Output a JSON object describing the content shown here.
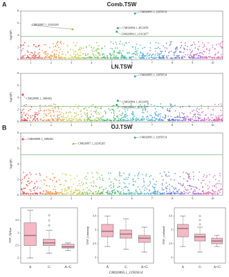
{
  "panel_labels": [
    "A",
    "B"
  ],
  "chart_data": [
    {
      "type": "manhattan",
      "title": "Comb.TSW",
      "ylabel": "-log10(P)",
      "xlim": [
        0.5,
        10.5
      ],
      "xticks": [
        1,
        2,
        3,
        4,
        5,
        6,
        7,
        8,
        9,
        10
      ],
      "ylim": [
        0,
        8
      ],
      "yticks": [
        0,
        2,
        4,
        6,
        8
      ],
      "threshold": 3.8,
      "colors": [
        "#e8463c",
        "#f08a2c",
        "#c9c93a",
        "#7cc242",
        "#3bb56c",
        "#36b9b0",
        "#3a9fd8",
        "#5a6fd6",
        "#a05ad0",
        "#e060b0"
      ],
      "x": [
        6.15,
        5.3,
        5.25,
        3.07
      ],
      "values": [
        7.6,
        5.2,
        4.6,
        5.0
      ],
      "labels": [
        "CM020895.1_12959514",
        "CM020894.1_4613458",
        "CM020894.1_11913677",
        "CM020897.1_33245265"
      ]
    },
    {
      "type": "manhattan",
      "title": "LN.TSW",
      "ylabel": "-log10(P)",
      "xlim": [
        0.5,
        10.5
      ],
      "xticks": [
        1,
        2,
        3,
        4,
        5,
        6,
        7,
        8,
        9,
        10
      ],
      "ylim": [
        0,
        8
      ],
      "yticks": [
        0,
        2,
        4,
        6,
        8
      ],
      "threshold": 2.6,
      "colors": [
        "#e8463c",
        "#f08a2c",
        "#c9c93a",
        "#7cc242",
        "#3bb56c",
        "#36b9b0",
        "#3a9fd8",
        "#5a6fd6",
        "#a05ad0",
        "#e060b0"
      ],
      "x": [
        6.15,
        0.6,
        5.3,
        5.25
      ],
      "values": [
        7.5,
        4.5,
        3.5,
        2.8
      ],
      "labels": [
        "CM020895.1_12959514",
        "CM020888.1_1486492",
        "CM020894.1_4613458",
        "CM020894.1_11913677"
      ]
    },
    {
      "type": "manhattan",
      "title": "ÖJ.TSW",
      "ylabel": "-log10(P)",
      "xlim": [
        0.5,
        10.5
      ],
      "xticks": [
        1,
        2,
        3,
        4,
        5,
        6,
        7,
        8,
        9,
        10
      ],
      "ylim": [
        0,
        8
      ],
      "yticks": [
        0,
        2,
        4,
        6,
        8
      ],
      "threshold": 5.2,
      "colors": [
        "#e8463c",
        "#f08a2c",
        "#c9c93a",
        "#7cc242",
        "#3bb56c",
        "#36b9b0",
        "#3a9fd8",
        "#5a6fd6",
        "#a05ad0",
        "#e060b0"
      ],
      "x": [
        0.6,
        3.1,
        6.15
      ],
      "values": [
        7.2,
        6.6,
        7.4
      ],
      "labels": [
        "CM020888.1_1486492",
        "CM020897.1_33245265",
        "CM020895.1_12959514"
      ]
    },
    {
      "type": "box",
      "ylabel": "TSW_Öjebyn",
      "categories": [
        "A",
        "G",
        "A+G"
      ],
      "color": "#f5b8c4",
      "ylim": [
        1.8,
        4.0
      ],
      "yticks": [
        2.0,
        2.5,
        3.0,
        3.5
      ],
      "boxes": [
        {
          "min": 2.0,
          "q1": 2.5,
          "median": 2.9,
          "q3": 3.4,
          "max": 3.9,
          "outliers": []
        },
        {
          "min": 2.2,
          "q1": 2.5,
          "median": 2.6,
          "q3": 2.75,
          "max": 3.1,
          "outliers": [
            3.3,
            3.5,
            3.7
          ]
        },
        {
          "min": 2.3,
          "q1": 2.4,
          "median": 2.45,
          "q3": 2.55,
          "max": 2.6,
          "outliers": []
        }
      ]
    },
    {
      "type": "box",
      "ylabel": "TSW_Lönnstorp",
      "xlabel": "CM020895.1_12959514",
      "categories": [
        "A",
        "G",
        "A+G"
      ],
      "color": "#f5b8c4",
      "ylim": [
        1.8,
        3.8
      ],
      "yticks": [
        2.0,
        2.5,
        3.0,
        3.5
      ],
      "boxes": [
        {
          "min": 2.4,
          "q1": 2.75,
          "median": 2.95,
          "q3": 3.2,
          "max": 3.5,
          "outliers": []
        },
        {
          "min": 2.3,
          "q1": 2.7,
          "median": 2.85,
          "q3": 3.0,
          "max": 3.4,
          "outliers": []
        },
        {
          "min": 2.2,
          "q1": 2.55,
          "median": 2.7,
          "q3": 2.8,
          "max": 3.1,
          "outliers": []
        }
      ]
    },
    {
      "type": "box",
      "ylabel": "TSW_combined",
      "categories": [
        "A",
        "G",
        "A+G"
      ],
      "color": "#f5b8c4",
      "ylim": [
        1.8,
        3.8
      ],
      "yticks": [
        2.0,
        2.5,
        3.0,
        3.5
      ],
      "boxes": [
        {
          "min": 2.4,
          "q1": 2.75,
          "median": 3.05,
          "q3": 3.2,
          "max": 3.5,
          "outliers": []
        },
        {
          "min": 2.2,
          "q1": 2.6,
          "median": 2.75,
          "q3": 2.85,
          "max": 3.1,
          "outliers": [
            3.2,
            3.35,
            3.5
          ]
        },
        {
          "min": 2.4,
          "q1": 2.5,
          "median": 2.6,
          "q3": 2.7,
          "max": 2.8,
          "outliers": []
        }
      ]
    }
  ]
}
